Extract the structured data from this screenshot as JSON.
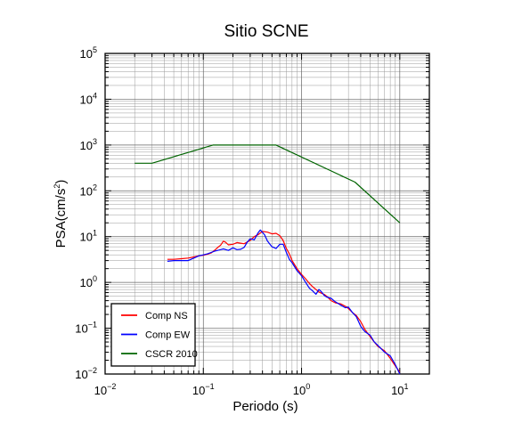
{
  "chart_data": {
    "type": "line",
    "title": "Sitio SCNE",
    "xlabel": "Periodo (s)",
    "ylabel": {
      "base": "PSA(cm/s",
      "exp": "2",
      "close": ")"
    },
    "xscale": "log",
    "yscale": "log",
    "xlim": [
      0.01,
      20
    ],
    "ylim": [
      0.01,
      100000
    ],
    "grid": true,
    "legend_position": "bottom-left",
    "x_ticks": [
      {
        "base": "10",
        "exp": "−2"
      },
      {
        "base": "10",
        "exp": "−1"
      },
      {
        "base": "10",
        "exp": "0"
      },
      {
        "base": "10",
        "exp": "1"
      }
    ],
    "y_ticks": [
      {
        "base": "10",
        "exp": "−2"
      },
      {
        "base": "10",
        "exp": "−1"
      },
      {
        "base": "10",
        "exp": "0"
      },
      {
        "base": "10",
        "exp": "1"
      },
      {
        "base": "10",
        "exp": "2"
      },
      {
        "base": "10",
        "exp": "3"
      },
      {
        "base": "10",
        "exp": "4"
      },
      {
        "base": "10",
        "exp": "5"
      }
    ],
    "series": [
      {
        "name": "Comp NS",
        "color": "#ff0000",
        "points": [
          [
            0.043,
            3.2
          ],
          [
            0.05,
            3.2
          ],
          [
            0.06,
            3.3
          ],
          [
            0.07,
            3.4
          ],
          [
            0.08,
            3.6
          ],
          [
            0.09,
            3.8
          ],
          [
            0.1,
            3.9
          ],
          [
            0.11,
            4.1
          ],
          [
            0.12,
            4.4
          ],
          [
            0.13,
            5.0
          ],
          [
            0.14,
            5.8
          ],
          [
            0.15,
            6.5
          ],
          [
            0.16,
            8.0
          ],
          [
            0.17,
            7.4
          ],
          [
            0.18,
            6.6
          ],
          [
            0.2,
            6.8
          ],
          [
            0.22,
            7.4
          ],
          [
            0.24,
            7.2
          ],
          [
            0.26,
            7.0
          ],
          [
            0.28,
            7.6
          ],
          [
            0.3,
            8.3
          ],
          [
            0.33,
            10.0
          ],
          [
            0.36,
            11.0
          ],
          [
            0.4,
            13.0
          ],
          [
            0.45,
            12.5
          ],
          [
            0.5,
            11.5
          ],
          [
            0.55,
            11.8
          ],
          [
            0.6,
            10.5
          ],
          [
            0.65,
            8.2
          ],
          [
            0.7,
            5.5
          ],
          [
            0.75,
            4.2
          ],
          [
            0.8,
            3.0
          ],
          [
            0.9,
            2.0
          ],
          [
            1.0,
            1.5
          ],
          [
            1.1,
            1.2
          ],
          [
            1.2,
            0.95
          ],
          [
            1.3,
            0.8
          ],
          [
            1.4,
            0.7
          ],
          [
            1.5,
            0.62
          ],
          [
            1.6,
            0.58
          ],
          [
            1.7,
            0.55
          ],
          [
            1.8,
            0.5
          ],
          [
            2.0,
            0.4
          ],
          [
            2.2,
            0.36
          ],
          [
            2.5,
            0.34
          ],
          [
            2.8,
            0.3
          ],
          [
            3.0,
            0.27
          ],
          [
            3.3,
            0.22
          ],
          [
            3.6,
            0.19
          ],
          [
            4.0,
            0.14
          ],
          [
            4.4,
            0.095
          ],
          [
            5.0,
            0.065
          ],
          [
            5.5,
            0.05
          ],
          [
            6.0,
            0.04
          ],
          [
            7.0,
            0.032
          ],
          [
            8.0,
            0.022
          ],
          [
            9.0,
            0.015
          ],
          [
            10.0,
            0.011
          ]
        ]
      },
      {
        "name": "Comp EW",
        "color": "#0000ff",
        "points": [
          [
            0.043,
            2.9
          ],
          [
            0.05,
            3.0
          ],
          [
            0.06,
            3.0
          ],
          [
            0.07,
            3.0
          ],
          [
            0.08,
            3.4
          ],
          [
            0.09,
            3.8
          ],
          [
            0.1,
            4.0
          ],
          [
            0.11,
            4.2
          ],
          [
            0.12,
            4.5
          ],
          [
            0.13,
            4.8
          ],
          [
            0.14,
            5.0
          ],
          [
            0.15,
            5.2
          ],
          [
            0.16,
            5.4
          ],
          [
            0.18,
            5.0
          ],
          [
            0.2,
            5.7
          ],
          [
            0.22,
            5.2
          ],
          [
            0.24,
            5.3
          ],
          [
            0.26,
            5.8
          ],
          [
            0.28,
            7.6
          ],
          [
            0.3,
            9.0
          ],
          [
            0.33,
            8.5
          ],
          [
            0.36,
            12.0
          ],
          [
            0.38,
            14.0
          ],
          [
            0.42,
            11.0
          ],
          [
            0.45,
            8.0
          ],
          [
            0.5,
            6.0
          ],
          [
            0.55,
            5.5
          ],
          [
            0.6,
            6.8
          ],
          [
            0.65,
            6.8
          ],
          [
            0.7,
            4.5
          ],
          [
            0.75,
            3.2
          ],
          [
            0.8,
            2.7
          ],
          [
            0.9,
            1.8
          ],
          [
            1.0,
            1.4
          ],
          [
            1.1,
            1.0
          ],
          [
            1.2,
            0.75
          ],
          [
            1.3,
            0.65
          ],
          [
            1.4,
            0.55
          ],
          [
            1.5,
            0.7
          ],
          [
            1.6,
            0.62
          ],
          [
            1.7,
            0.52
          ],
          [
            1.8,
            0.48
          ],
          [
            2.0,
            0.45
          ],
          [
            2.2,
            0.38
          ],
          [
            2.5,
            0.32
          ],
          [
            2.8,
            0.28
          ],
          [
            3.0,
            0.29
          ],
          [
            3.3,
            0.22
          ],
          [
            3.6,
            0.18
          ],
          [
            4.0,
            0.11
          ],
          [
            4.4,
            0.085
          ],
          [
            5.0,
            0.07
          ],
          [
            5.5,
            0.05
          ],
          [
            6.0,
            0.042
          ],
          [
            7.0,
            0.03
          ],
          [
            8.0,
            0.025
          ],
          [
            9.0,
            0.016
          ],
          [
            10.0,
            0.01
          ]
        ]
      },
      {
        "name": "CSCR 2010",
        "color": "#006400",
        "points": [
          [
            0.02,
            400
          ],
          [
            0.03,
            400
          ],
          [
            0.125,
            1000
          ],
          [
            0.55,
            1000
          ],
          [
            3.5,
            155
          ],
          [
            10.0,
            20
          ]
        ]
      }
    ]
  }
}
